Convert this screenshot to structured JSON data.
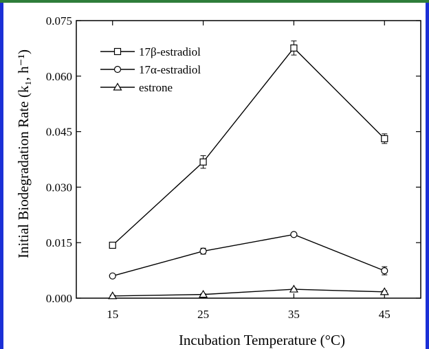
{
  "chart_data": {
    "type": "line",
    "xlabel": "Incubation Temperature (°C)",
    "ylabel": "Initial Biodegradation Rate (k₁, h⁻¹)",
    "x": [
      15,
      25,
      35,
      45
    ],
    "xlim": [
      11,
      49
    ],
    "ylim": [
      0,
      0.075
    ],
    "x_ticks": [
      "15",
      "25",
      "35",
      "45"
    ],
    "y_ticks": [
      "0.000",
      "0.015",
      "0.030",
      "0.045",
      "0.060",
      "0.075"
    ],
    "grid": false,
    "legend_position": "top-left",
    "series": [
      {
        "name": "17β-estradiol",
        "marker": "square",
        "values": [
          0.0143,
          0.0368,
          0.0676,
          0.0431
        ],
        "errors": [
          0.0003,
          0.0017,
          0.0019,
          0.0013
        ]
      },
      {
        "name": "17α-estradiol",
        "marker": "circle",
        "values": [
          0.006,
          0.0127,
          0.0172,
          0.0074
        ],
        "errors": [
          0.0004,
          0.0008,
          0.0004,
          0.0011
        ]
      },
      {
        "name": "estrone",
        "marker": "triangle",
        "values": [
          0.0006,
          0.001,
          0.0024,
          0.0017
        ],
        "errors": [
          0.0002,
          0.0002,
          0.0003,
          0.0003
        ]
      }
    ]
  }
}
